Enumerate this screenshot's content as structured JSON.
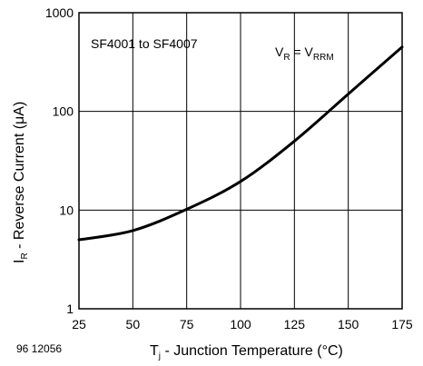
{
  "chart_data": {
    "type": "line",
    "x_scale": "linear",
    "y_scale": "log",
    "xlim": [
      25,
      175
    ],
    "ylim": [
      1,
      1000
    ],
    "x_ticks": [
      "25",
      "50",
      "75",
      "100",
      "125",
      "150",
      "175"
    ],
    "y_ticks": [
      "1",
      "10",
      "100",
      "1000"
    ],
    "grid": true,
    "xlabel": {
      "main": "T",
      "sub": "j",
      "rest": " - Junction Temperature (°C)"
    },
    "ylabel": {
      "main": "I",
      "sub": "R",
      "rest": " - Reverse Current (μA)"
    },
    "annotations": {
      "part_range": "SF4001 to SF4007",
      "condition": {
        "v1": "V",
        "v1_sub": "R",
        "eq": " = V",
        "v2_sub": "RRM"
      }
    },
    "figure_id": "96 12056",
    "series": [
      {
        "x": [
          25,
          50,
          75,
          100,
          125,
          150,
          175
        ],
        "y": [
          5,
          6.2,
          10.2,
          19.5,
          50,
          150,
          450
        ]
      }
    ]
  },
  "colors": {
    "line": "#000000",
    "grid": "#000000",
    "background": "#ffffff"
  }
}
